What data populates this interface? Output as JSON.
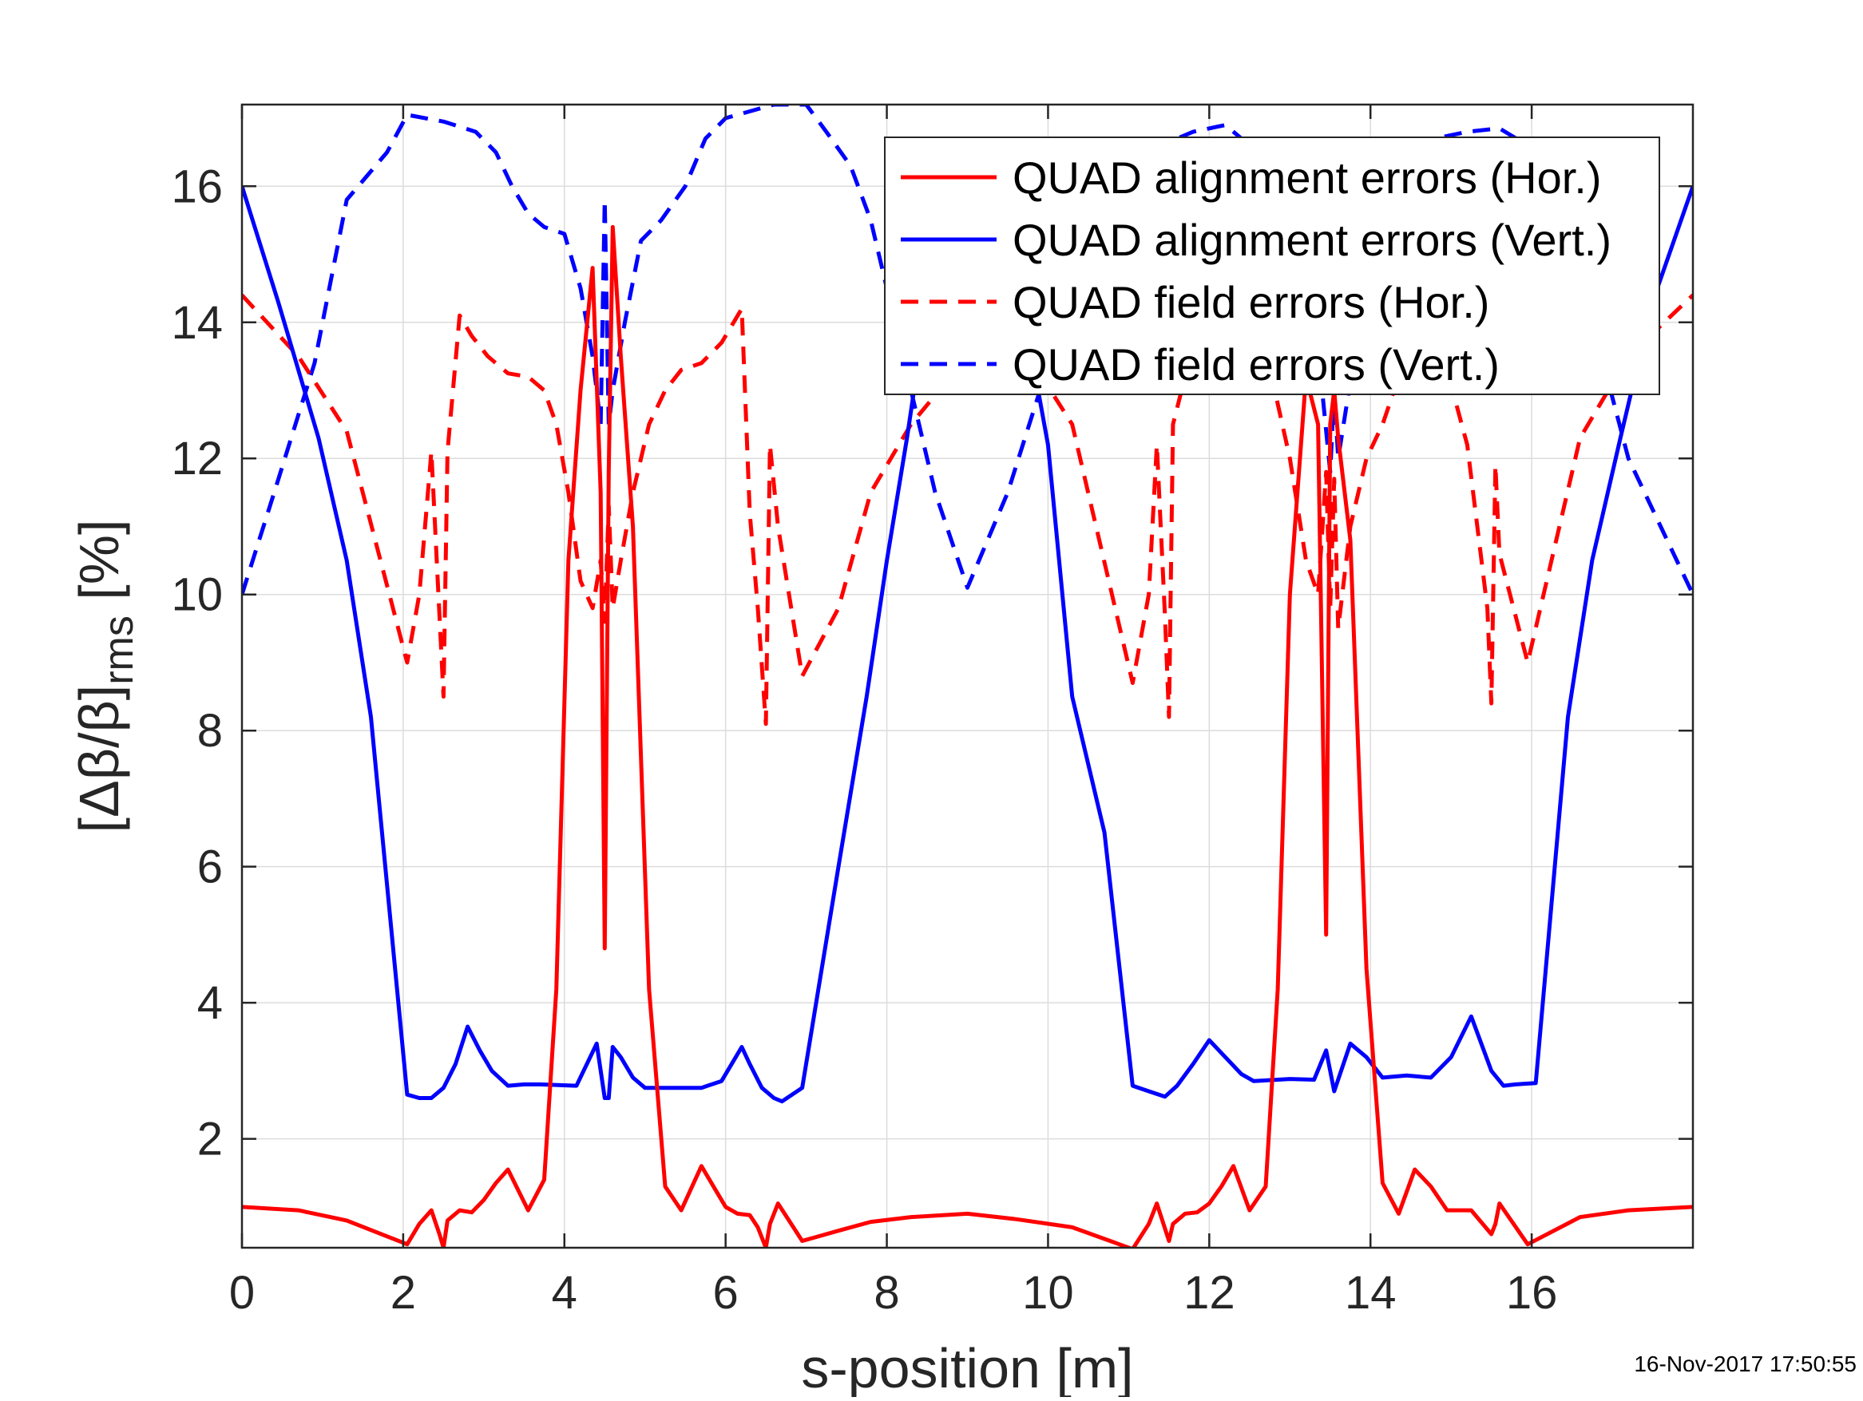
{
  "chart_data": {
    "type": "line",
    "title": "",
    "xlabel": "s-position [m]",
    "ylabel": {
      "prefix": "[Δβ/β]",
      "subscript": "rms",
      "suffix": " [%]"
    },
    "xlim": [
      0,
      18
    ],
    "ylim": [
      0.4,
      17.2
    ],
    "xticks": [
      0,
      2,
      4,
      6,
      8,
      10,
      12,
      14,
      16
    ],
    "yticks": [
      2,
      4,
      6,
      8,
      10,
      12,
      14,
      16
    ],
    "grid": true,
    "legend_position": "top-right",
    "timestamp": "16-Nov-2017 17:50:55",
    "series": [
      {
        "name": "QUAD alignment errors (Hor.)",
        "color": "#ff0000",
        "style": "solid",
        "x": [
          0,
          0.7,
          1.3,
          2.05,
          2.2,
          2.35,
          2.45,
          2.5,
          2.55,
          2.7,
          2.85,
          3.0,
          3.15,
          3.3,
          3.55,
          3.75,
          3.9,
          4.05,
          4.2,
          4.35,
          4.45,
          4.5,
          4.55,
          4.6,
          4.7,
          4.85,
          5.05,
          5.25,
          5.45,
          5.7,
          5.85,
          6.0,
          6.15,
          6.3,
          6.4,
          6.5,
          6.55,
          6.65,
          6.95,
          7.4,
          7.8,
          8.3,
          9.0,
          9.6,
          10.3,
          11.05,
          11.25,
          11.35,
          11.5,
          11.55,
          11.7,
          11.85,
          12.0,
          12.15,
          12.3,
          12.5,
          12.7,
          12.85,
          13.0,
          13.2,
          13.35,
          13.45,
          13.5,
          13.55,
          13.6,
          13.75,
          13.95,
          14.15,
          14.35,
          14.55,
          14.75,
          14.95,
          15.25,
          15.5,
          15.55,
          15.6,
          15.95,
          16.6,
          17.2,
          18.0
        ],
        "y": [
          1.0,
          0.95,
          0.8,
          0.45,
          0.75,
          0.95,
          0.6,
          0.4,
          0.8,
          0.95,
          0.92,
          1.1,
          1.35,
          1.55,
          0.95,
          1.4,
          4.2,
          10.5,
          13.0,
          14.8,
          11.5,
          4.8,
          11.8,
          15.4,
          13.5,
          11.0,
          4.2,
          1.3,
          0.95,
          1.6,
          1.3,
          1.0,
          0.9,
          0.88,
          0.7,
          0.4,
          0.75,
          1.05,
          0.5,
          0.65,
          0.78,
          0.85,
          0.9,
          0.82,
          0.7,
          0.38,
          0.75,
          1.05,
          0.5,
          0.75,
          0.9,
          0.92,
          1.05,
          1.3,
          1.6,
          0.95,
          1.3,
          4.2,
          10.0,
          13.2,
          12.5,
          5.0,
          12.5,
          13.0,
          12.3,
          10.8,
          4.5,
          1.35,
          0.9,
          1.55,
          1.3,
          0.95,
          0.95,
          0.6,
          0.75,
          1.05,
          0.45,
          0.85,
          0.95,
          1.0
        ]
      },
      {
        "name": "QUAD alignment errors (Vert.)",
        "color": "#0000ff",
        "style": "solid",
        "x": [
          0,
          0.45,
          0.95,
          1.3,
          1.6,
          2.05,
          2.2,
          2.35,
          2.5,
          2.65,
          2.8,
          2.95,
          3.1,
          3.3,
          3.5,
          3.7,
          4.15,
          4.4,
          4.5,
          4.55,
          4.6,
          4.7,
          4.85,
          5.0,
          5.25,
          5.5,
          5.7,
          5.95,
          6.2,
          6.3,
          6.45,
          6.6,
          6.7,
          6.95,
          7.4,
          7.75,
          8.0,
          8.25,
          8.5,
          8.9,
          9.35,
          9.8,
          10.0,
          10.3,
          10.7,
          11.05,
          11.25,
          11.45,
          11.6,
          11.8,
          12.0,
          12.2,
          12.4,
          12.55,
          13.0,
          13.3,
          13.45,
          13.55,
          13.75,
          13.95,
          14.15,
          14.45,
          14.75,
          15.0,
          15.25,
          15.5,
          15.65,
          15.8,
          16.05,
          16.45,
          16.75,
          17.1,
          17.5,
          18.0
        ],
        "y": [
          16.0,
          14.3,
          12.3,
          10.5,
          8.2,
          2.65,
          2.6,
          2.6,
          2.75,
          3.1,
          3.65,
          3.3,
          3.0,
          2.78,
          2.8,
          2.8,
          2.78,
          3.4,
          2.6,
          2.6,
          3.35,
          3.2,
          2.9,
          2.75,
          2.75,
          2.75,
          2.75,
          2.85,
          3.35,
          3.1,
          2.75,
          2.6,
          2.55,
          2.75,
          6.0,
          8.5,
          10.5,
          12.3,
          14.3,
          16.0,
          15.5,
          13.5,
          12.2,
          8.5,
          6.5,
          2.78,
          2.7,
          2.62,
          2.78,
          3.1,
          3.45,
          3.2,
          2.95,
          2.85,
          2.88,
          2.87,
          3.3,
          2.7,
          3.4,
          3.2,
          2.9,
          2.93,
          2.9,
          3.2,
          3.8,
          3.0,
          2.78,
          2.8,
          2.82,
          8.2,
          10.5,
          12.3,
          14.3,
          16.0
        ]
      },
      {
        "name": "QUAD field errors (Hor.)",
        "color": "#ff0000",
        "style": "dashed",
        "x": [
          0,
          0.7,
          1.3,
          2.05,
          2.2,
          2.35,
          2.45,
          2.5,
          2.55,
          2.7,
          2.85,
          3.05,
          3.3,
          3.55,
          3.75,
          3.9,
          4.05,
          4.2,
          4.35,
          4.45,
          4.5,
          4.55,
          4.6,
          4.7,
          4.85,
          5.05,
          5.25,
          5.45,
          5.7,
          5.95,
          6.2,
          6.3,
          6.4,
          6.5,
          6.55,
          6.65,
          6.95,
          7.4,
          7.8,
          8.3,
          9.0,
          9.6,
          10.3,
          11.05,
          11.25,
          11.35,
          11.45,
          11.5,
          11.55,
          11.7,
          11.85,
          12.0,
          12.15,
          12.3,
          12.5,
          12.7,
          12.85,
          13.0,
          13.2,
          13.35,
          13.45,
          13.5,
          13.55,
          13.6,
          13.75,
          13.95,
          14.15,
          14.35,
          14.55,
          14.75,
          14.95,
          15.2,
          15.45,
          15.5,
          15.55,
          15.6,
          15.95,
          16.6,
          17.2,
          18.0
        ],
        "y": [
          14.4,
          13.5,
          12.4,
          9.0,
          10.0,
          12.1,
          9.7,
          8.5,
          12.1,
          14.1,
          13.8,
          13.5,
          13.25,
          13.2,
          13.0,
          12.5,
          11.5,
          10.2,
          9.8,
          10.5,
          9.6,
          11.3,
          9.8,
          10.5,
          11.5,
          12.5,
          13.0,
          13.3,
          13.4,
          13.7,
          14.2,
          11.2,
          9.8,
          8.1,
          12.2,
          11.0,
          8.8,
          9.8,
          11.5,
          12.5,
          13.5,
          13.8,
          12.5,
          8.7,
          10.0,
          12.2,
          9.7,
          8.2,
          12.5,
          13.2,
          13.4,
          13.5,
          13.6,
          13.8,
          14.0,
          13.6,
          12.8,
          12.0,
          10.5,
          10.0,
          11.8,
          9.8,
          11.7,
          9.5,
          11.0,
          12.0,
          12.5,
          13.2,
          14.0,
          13.8,
          13.3,
          12.2,
          9.8,
          8.4,
          11.9,
          10.6,
          9.0,
          12.3,
          13.5,
          14.4
        ]
      },
      {
        "name": "QUAD field errors (Vert.)",
        "color": "#0000ff",
        "style": "dashed",
        "x": [
          0,
          0.4,
          0.9,
          1.3,
          1.8,
          2.05,
          2.5,
          2.9,
          3.15,
          3.35,
          3.55,
          3.75,
          4.0,
          4.2,
          4.35,
          4.45,
          4.5,
          4.55,
          4.6,
          4.75,
          4.95,
          5.2,
          5.5,
          5.75,
          6.0,
          6.3,
          6.6,
          7.0,
          7.25,
          7.55,
          7.8,
          8.0,
          8.3,
          8.6,
          9.0,
          9.5,
          9.9,
          10.1,
          10.5,
          11.0,
          11.4,
          11.8,
          12.2,
          12.6,
          12.9,
          13.2,
          13.4,
          13.5,
          13.55,
          13.6,
          13.8,
          14.0,
          14.4,
          14.8,
          15.2,
          15.6,
          15.95,
          16.3,
          16.8,
          17.2,
          17.6,
          18.0
        ],
        "y": [
          10.0,
          11.5,
          13.4,
          15.8,
          16.5,
          17.05,
          16.95,
          16.8,
          16.5,
          16.0,
          15.6,
          15.4,
          15.3,
          14.5,
          13.5,
          12.5,
          15.8,
          12.5,
          13.0,
          14.0,
          15.2,
          15.5,
          16.0,
          16.7,
          17.0,
          17.1,
          17.2,
          17.2,
          16.8,
          16.3,
          15.5,
          14.5,
          13.0,
          11.5,
          10.1,
          11.5,
          13.0,
          14.5,
          15.5,
          16.2,
          16.6,
          16.8,
          16.9,
          16.5,
          15.5,
          14.0,
          13.0,
          11.8,
          13.0,
          12.0,
          13.5,
          15.0,
          16.2,
          16.7,
          16.8,
          16.85,
          16.6,
          15.5,
          13.8,
          12.0,
          11.0,
          10.0
        ]
      }
    ]
  }
}
